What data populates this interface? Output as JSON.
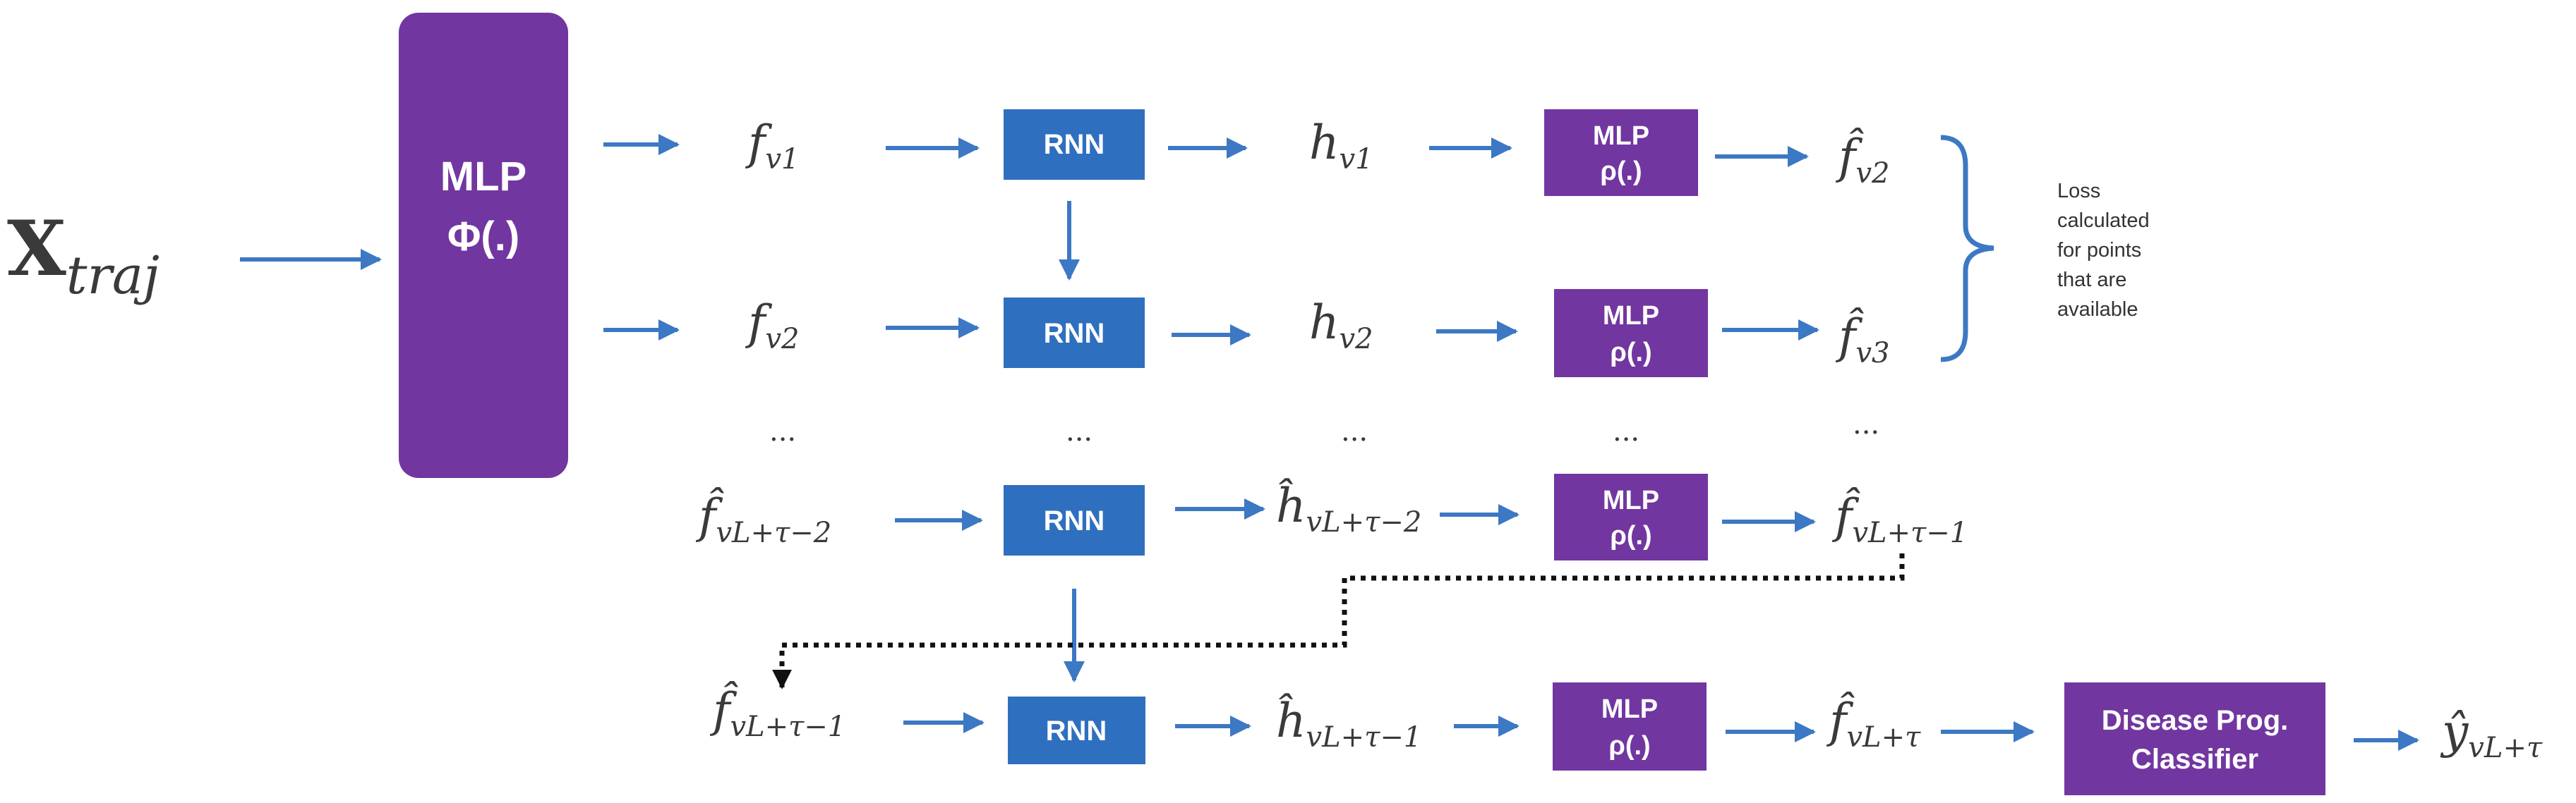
{
  "colors": {
    "purple": "#7236A0",
    "blue": "#2F6FBF",
    "arrow": "#3C78C3",
    "text": "#3a3a3a",
    "dotted": "#111111"
  },
  "input": {
    "symbol": "X",
    "subscript": "traj"
  },
  "encoder": {
    "line1": "MLP",
    "line2": "Φ(.)"
  },
  "rnn_label": "RNN",
  "mlp_rho": {
    "line1": "MLP",
    "line2": "ρ(.)"
  },
  "classifier": {
    "line1": "Disease Prog.",
    "line2": "Classifier"
  },
  "ellipsis": "...",
  "rows": {
    "r1": {
      "f": "v1",
      "h": "v1",
      "fhat": "v2"
    },
    "r2": {
      "f": "v2",
      "h": "v2",
      "fhat": "v3"
    },
    "r3": {
      "f": "vL+τ−2",
      "h": "vL+τ−2",
      "fhat": "vL+τ−1"
    },
    "r4": {
      "f": "vL+τ−1",
      "h": "vL+τ−1",
      "fhat": "vL+τ",
      "y": "vL+τ"
    }
  },
  "loss_note": [
    "Loss",
    "calculated",
    "for points",
    "that are",
    "available"
  ]
}
